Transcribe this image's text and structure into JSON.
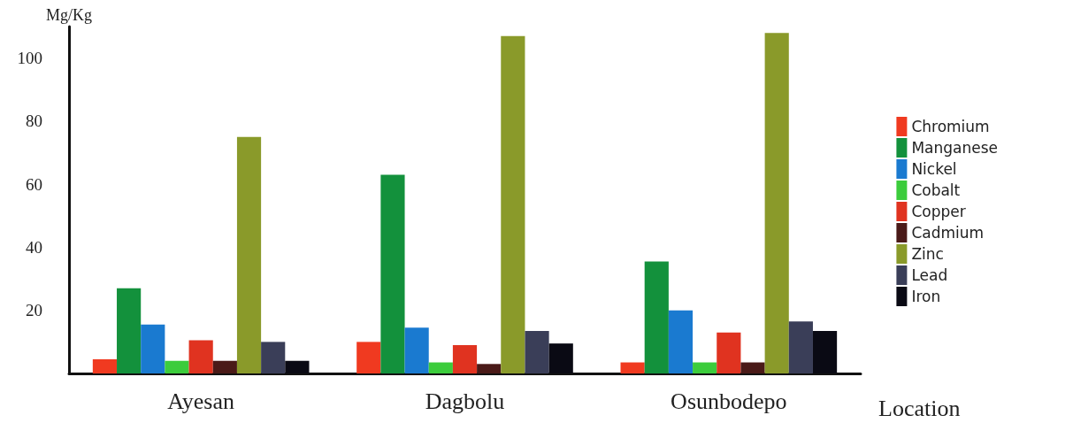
{
  "chart_data": {
    "type": "bar",
    "xlabel": "Location",
    "ylabel": "Mg/Kg",
    "categories": [
      "Ayesan",
      "Dagbolu",
      "Osunbodepo"
    ],
    "series": [
      {
        "name": "Chromium",
        "color": "#f03a20",
        "values": [
          4.5,
          10,
          3.5
        ]
      },
      {
        "name": "Manganese",
        "color": "#13913c",
        "values": [
          27,
          63,
          35.5
        ]
      },
      {
        "name": "Nickel",
        "color": "#1a7ad0",
        "values": [
          15.5,
          14.5,
          20
        ]
      },
      {
        "name": "Cobalt",
        "color": "#3ccc3c",
        "values": [
          4,
          3.5,
          3.5
        ]
      },
      {
        "name": "Copper",
        "color": "#e03320",
        "values": [
          10.5,
          9,
          13
        ]
      },
      {
        "name": "Cadmium",
        "color": "#4a1a18",
        "values": [
          4,
          3,
          3.5
        ]
      },
      {
        "name": "Zinc",
        "color": "#8a9a2a",
        "values": [
          75,
          107,
          108
        ]
      },
      {
        "name": "Lead",
        "color": "#3a3e58",
        "values": [
          10,
          13.5,
          16.5
        ]
      },
      {
        "name": "Iron",
        "color": "#0a0a14",
        "values": [
          4,
          9.5,
          13.5
        ]
      }
    ],
    "ylim": [
      0,
      110
    ],
    "yticks": [
      20,
      40,
      60,
      80,
      100
    ],
    "grid": false,
    "legend": "right"
  }
}
